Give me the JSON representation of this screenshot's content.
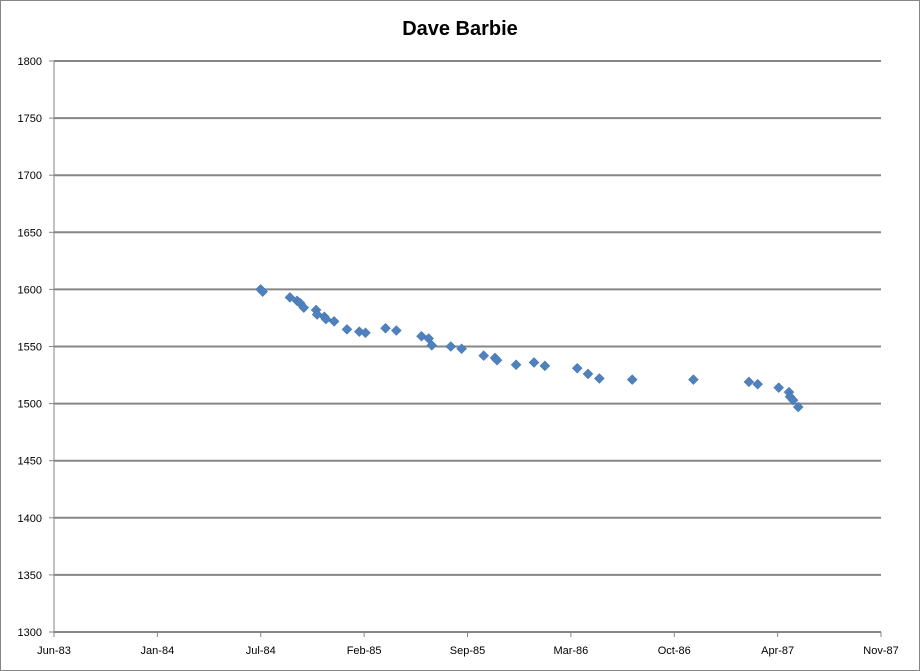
{
  "chart_data": {
    "type": "scatter",
    "title": "Dave Barbie",
    "xlabel": "",
    "ylabel": "",
    "xlim": [
      "1983-06-10",
      "1987-11-05"
    ],
    "ylim": [
      1300,
      1800
    ],
    "y_ticks": [
      1300,
      1350,
      1400,
      1450,
      1500,
      1550,
      1600,
      1650,
      1700,
      1750,
      1800
    ],
    "x_tick_labels": [
      "Jun-83",
      "Jan-84",
      "Jul-84",
      "Feb-85",
      "Sep-85",
      "Mar-86",
      "Oct-86",
      "Apr-87",
      "Nov-87"
    ],
    "grid": "horizontal",
    "legend": "none",
    "marker_color": "#4F81BD",
    "series": [
      {
        "name": "Dave Barbie",
        "points": [
          [
            "1984-07-16",
            1600
          ],
          [
            "1984-07-20",
            1598
          ],
          [
            "1984-09-11",
            1593
          ],
          [
            "1984-09-25",
            1590
          ],
          [
            "1984-10-01",
            1588
          ],
          [
            "1984-10-08",
            1584
          ],
          [
            "1984-11-01",
            1582
          ],
          [
            "1984-11-03",
            1578
          ],
          [
            "1984-11-17",
            1576
          ],
          [
            "1984-11-20",
            1574
          ],
          [
            "1984-12-06",
            1572
          ],
          [
            "1984-12-31",
            1565
          ],
          [
            "1985-01-24",
            1563
          ],
          [
            "1985-02-05",
            1562
          ],
          [
            "1985-03-16",
            1566
          ],
          [
            "1985-04-06",
            1564
          ],
          [
            "1985-05-25",
            1559
          ],
          [
            "1985-06-08",
            1557
          ],
          [
            "1985-06-14",
            1551
          ],
          [
            "1985-07-21",
            1550
          ],
          [
            "1985-08-11",
            1548
          ],
          [
            "1985-09-23",
            1542
          ],
          [
            "1985-10-15",
            1540
          ],
          [
            "1985-10-19",
            1538
          ],
          [
            "1985-11-25",
            1534
          ],
          [
            "1985-12-30",
            1536
          ],
          [
            "1986-01-20",
            1533
          ],
          [
            "1986-03-24",
            1531
          ],
          [
            "1986-04-14",
            1526
          ],
          [
            "1986-05-06",
            1522
          ],
          [
            "1986-07-09",
            1521
          ],
          [
            "1986-11-05",
            1521
          ],
          [
            "1987-02-21",
            1519
          ],
          [
            "1987-03-10",
            1517
          ],
          [
            "1987-04-20",
            1514
          ],
          [
            "1987-05-10",
            1510
          ],
          [
            "1987-05-12",
            1506
          ],
          [
            "1987-05-18",
            1503
          ],
          [
            "1987-05-28",
            1497
          ]
        ]
      }
    ]
  }
}
